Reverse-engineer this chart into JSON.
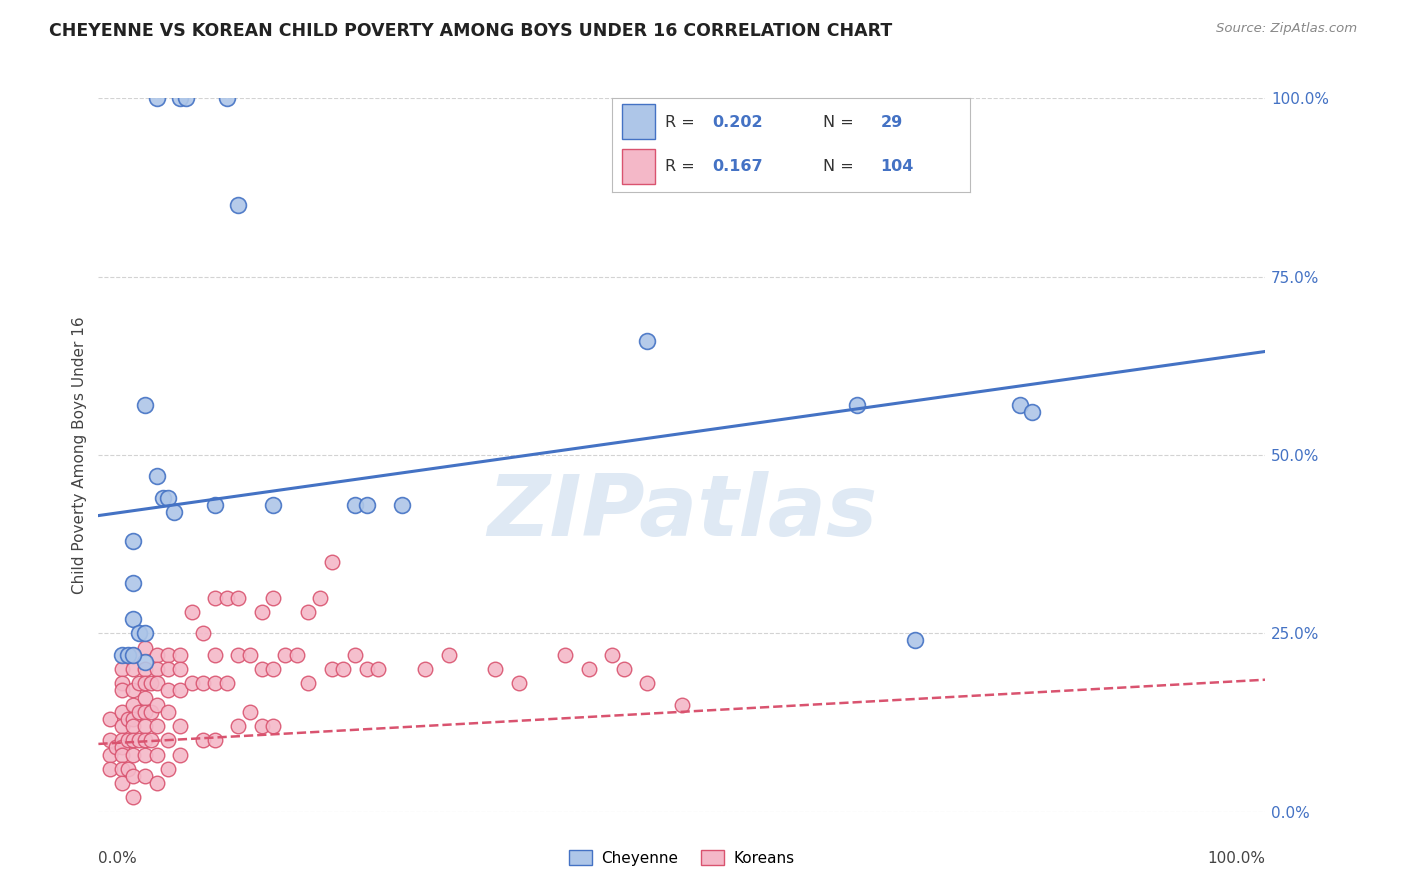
{
  "title": "CHEYENNE VS KOREAN CHILD POVERTY AMONG BOYS UNDER 16 CORRELATION CHART",
  "source": "Source: ZipAtlas.com",
  "ylabel": "Child Poverty Among Boys Under 16",
  "watermark": "ZIPatlas",
  "cheyenne_R": 0.202,
  "cheyenne_N": 29,
  "korean_R": 0.167,
  "korean_N": 104,
  "cheyenne_color": "#aec6e8",
  "cheyenne_line_color": "#4472c4",
  "korean_color": "#f4b8c8",
  "korean_line_color": "#d9536f",
  "background_color": "#ffffff",
  "grid_color": "#c8c8c8",
  "cheyenne_x": [
    0.05,
    0.07,
    0.075,
    0.11,
    0.04,
    0.05,
    0.055,
    0.06,
    0.065,
    0.03,
    0.03,
    0.03,
    0.035,
    0.04,
    0.04,
    0.22,
    0.23,
    0.26,
    0.47,
    0.65,
    0.7,
    0.79,
    0.8,
    0.02,
    0.025,
    0.03,
    0.1,
    0.15,
    0.12
  ],
  "cheyenne_y": [
    1.0,
    1.0,
    1.0,
    1.0,
    0.57,
    0.47,
    0.44,
    0.44,
    0.42,
    0.38,
    0.32,
    0.27,
    0.25,
    0.25,
    0.21,
    0.43,
    0.43,
    0.43,
    0.66,
    0.57,
    0.24,
    0.57,
    0.56,
    0.22,
    0.22,
    0.22,
    0.43,
    0.43,
    0.85
  ],
  "korean_x": [
    0.01,
    0.01,
    0.01,
    0.01,
    0.015,
    0.02,
    0.02,
    0.02,
    0.02,
    0.02,
    0.02,
    0.02,
    0.02,
    0.02,
    0.02,
    0.025,
    0.025,
    0.025,
    0.03,
    0.03,
    0.03,
    0.03,
    0.03,
    0.03,
    0.03,
    0.03,
    0.03,
    0.03,
    0.035,
    0.035,
    0.035,
    0.04,
    0.04,
    0.04,
    0.04,
    0.04,
    0.04,
    0.04,
    0.04,
    0.04,
    0.045,
    0.045,
    0.045,
    0.05,
    0.05,
    0.05,
    0.05,
    0.05,
    0.05,
    0.05,
    0.06,
    0.06,
    0.06,
    0.06,
    0.06,
    0.06,
    0.07,
    0.07,
    0.07,
    0.07,
    0.07,
    0.08,
    0.08,
    0.09,
    0.09,
    0.09,
    0.1,
    0.1,
    0.1,
    0.1,
    0.11,
    0.11,
    0.12,
    0.12,
    0.12,
    0.13,
    0.13,
    0.14,
    0.14,
    0.14,
    0.15,
    0.15,
    0.15,
    0.16,
    0.17,
    0.18,
    0.18,
    0.19,
    0.2,
    0.2,
    0.21,
    0.22,
    0.23,
    0.24,
    0.28,
    0.3,
    0.34,
    0.36,
    0.4,
    0.42,
    0.44,
    0.45,
    0.47,
    0.5
  ],
  "korean_y": [
    0.13,
    0.1,
    0.08,
    0.06,
    0.09,
    0.2,
    0.18,
    0.17,
    0.14,
    0.12,
    0.1,
    0.09,
    0.08,
    0.06,
    0.04,
    0.13,
    0.1,
    0.06,
    0.22,
    0.2,
    0.17,
    0.15,
    0.13,
    0.12,
    0.1,
    0.08,
    0.05,
    0.02,
    0.18,
    0.14,
    0.1,
    0.23,
    0.2,
    0.18,
    0.16,
    0.14,
    0.12,
    0.1,
    0.08,
    0.05,
    0.18,
    0.14,
    0.1,
    0.22,
    0.2,
    0.18,
    0.15,
    0.12,
    0.08,
    0.04,
    0.22,
    0.2,
    0.17,
    0.14,
    0.1,
    0.06,
    0.22,
    0.2,
    0.17,
    0.12,
    0.08,
    0.28,
    0.18,
    0.25,
    0.18,
    0.1,
    0.3,
    0.22,
    0.18,
    0.1,
    0.3,
    0.18,
    0.3,
    0.22,
    0.12,
    0.22,
    0.14,
    0.28,
    0.2,
    0.12,
    0.3,
    0.2,
    0.12,
    0.22,
    0.22,
    0.28,
    0.18,
    0.3,
    0.2,
    0.35,
    0.2,
    0.22,
    0.2,
    0.2,
    0.2,
    0.22,
    0.2,
    0.18,
    0.22,
    0.2,
    0.22,
    0.2,
    0.18,
    0.15
  ],
  "cheyenne_line_x0": 0.0,
  "cheyenne_line_y0": 0.415,
  "cheyenne_line_x1": 1.0,
  "cheyenne_line_y1": 0.645,
  "korean_line_x0": 0.0,
  "korean_line_y0": 0.095,
  "korean_line_x1": 1.0,
  "korean_line_y1": 0.185,
  "xlim": [
    0.0,
    1.0
  ],
  "ylim": [
    0.0,
    1.0
  ],
  "yticks": [
    0.0,
    0.25,
    0.5,
    0.75,
    1.0
  ],
  "ytick_labels": [
    "0.0%",
    "25.0%",
    "50.0%",
    "75.0%",
    "100.0%"
  ]
}
